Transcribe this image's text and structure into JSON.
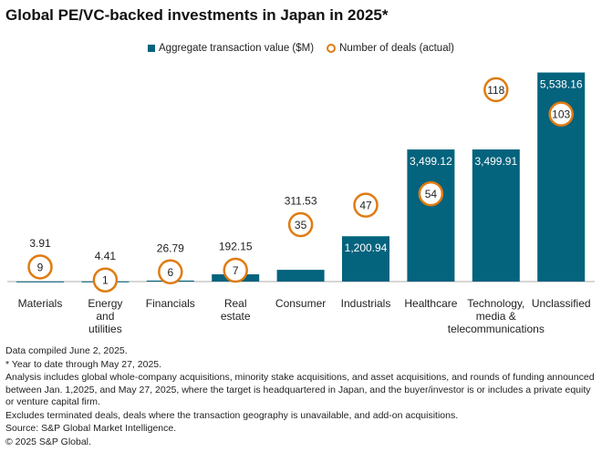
{
  "chart_data": {
    "type": "bar",
    "title": "Global PE/VC-backed investments in Japan in 2025*",
    "categories": [
      "Materials",
      "Energy and utilities",
      "Financials",
      "Real estate",
      "Consumer",
      "Industrials",
      "Healthcare",
      "Technology, media & telecommunications",
      "Unclassified"
    ],
    "category_lines": [
      [
        "Materials"
      ],
      [
        "Energy",
        "and",
        "utilities"
      ],
      [
        "Financials"
      ],
      [
        "Real",
        "estate"
      ],
      [
        "Consumer"
      ],
      [
        "Industrials"
      ],
      [
        "Healthcare"
      ],
      [
        "Technology,",
        "media &",
        "telecommunications"
      ],
      [
        "Unclassified"
      ]
    ],
    "series": [
      {
        "name": "Aggregate transaction value ($M)",
        "type": "bar",
        "axis": "primary",
        "color": "#04637d",
        "values": [
          3.91,
          4.41,
          26.79,
          192.15,
          311.53,
          1200.94,
          3499.12,
          3499.91,
          5538.16
        ],
        "labels": [
          "3.91",
          "4.41",
          "26.79",
          "192.15",
          "311.53",
          "1,200.94",
          "3,499.12",
          "3,499.91",
          "5,538.16"
        ]
      },
      {
        "name": "Number of deals (actual)",
        "type": "marker",
        "axis": "secondary",
        "color": "#e07b10",
        "values": [
          9,
          1,
          6,
          7,
          35,
          47,
          54,
          118,
          103
        ]
      }
    ],
    "primary_ylim": [
      0,
      5600
    ],
    "secondary_ylim": [
      0,
      130
    ],
    "grid": false,
    "legend_position": "top-center"
  },
  "notes": [
    "Data compiled June 2, 2025.",
    "* Year to date through May 27, 2025.",
    "Analysis includes global whole-company acquisitions, minority stake acquisitions, and asset acquisitions, and rounds of funding announced between Jan. 1,2025, and May 27, 2025, where the target is headquartered in Japan, and the buyer/investor is or includes a private equity or venture capital firm.",
    "Excludes terminated deals,  deals where the transaction geography is unavailable, and add-on acquisitions.",
    "Source: S&P Global Market Intelligence.",
    "© 2025 S&P Global."
  ]
}
